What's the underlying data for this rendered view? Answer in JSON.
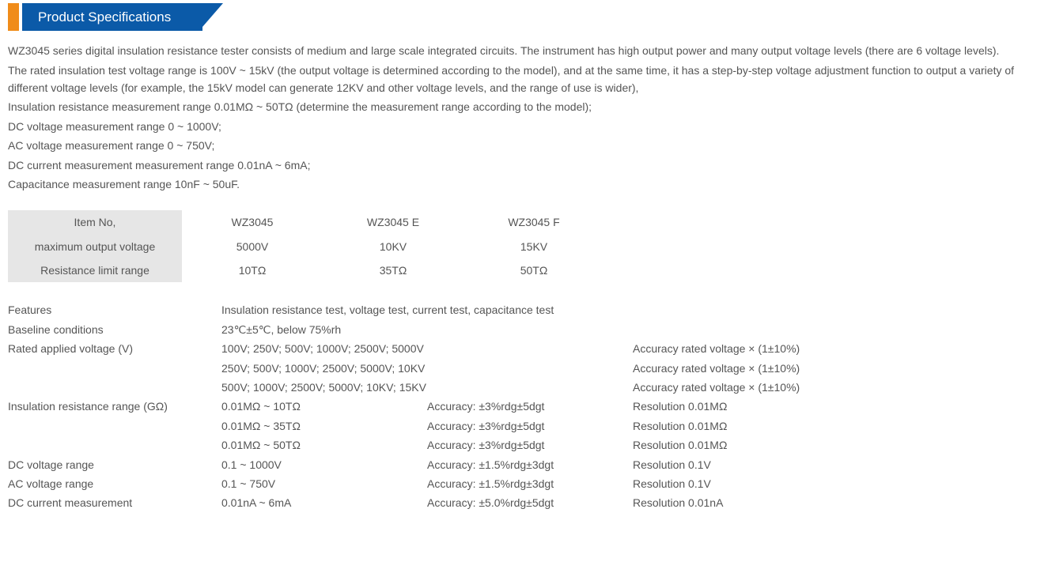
{
  "header": {
    "title": "Product Specifications"
  },
  "colors": {
    "orange": "#f08c1a",
    "blue": "#0b5aa8",
    "grey_bg": "#e6e6e6",
    "text": "#555555"
  },
  "description": {
    "p1": "WZ3045 series digital insulation resistance tester consists of medium and large scale integrated circuits. The instrument has high output power and many output voltage levels (there are 6 voltage levels).",
    "p2": "The rated insulation test voltage range is 100V ~ 15kV (the output voltage is determined according to the model), and at the same time, it has a step-by-step voltage adjustment function to output a variety of different voltage levels (for example, the 15kV model can generate 12KV and other voltage levels, and the range of use is wider),",
    "p3": "Insulation resistance measurement range 0.01MΩ ~ 50TΩ (determine the measurement range according to the model);",
    "p4": "DC voltage measurement range 0 ~ 1000V;",
    "p5": "AC voltage measurement range 0 ~ 750V;",
    "p6": "DC current measurement measurement range 0.01nA ~ 6mA;",
    "p7": "Capacitance measurement range 10nF ~ 50uF."
  },
  "models": {
    "labels": {
      "item": "Item No,",
      "max_voltage": "maximum output voltage",
      "res_limit": "Resistance limit range"
    },
    "cols": [
      {
        "name": "WZ3045",
        "max_voltage": "5000V",
        "res_limit": "10TΩ"
      },
      {
        "name": "WZ3045 E",
        "max_voltage": "10KV",
        "res_limit": "35TΩ"
      },
      {
        "name": "WZ3045 F",
        "max_voltage": "15KV",
        "res_limit": "50TΩ"
      }
    ]
  },
  "specs": {
    "features": {
      "label": "Features",
      "value": "Insulation resistance test, voltage test, current test, capacitance test"
    },
    "baseline": {
      "label": "Baseline conditions",
      "value": "23℃±5℃, below 75%rh"
    },
    "rated_voltage": {
      "label": "Rated applied voltage (V)",
      "rows": [
        {
          "v": "100V;  250V;  500V;  1000V;  2500V;  5000V",
          "a": "Accuracy rated voltage × (1±10%)"
        },
        {
          "v": "250V;  500V;  1000V;  2500V;  5000V;  10KV",
          "a": "Accuracy rated voltage × (1±10%)"
        },
        {
          "v": "500V;  1000V;  2500V;  5000V;  10KV;  15KV",
          "a": "Accuracy rated voltage × (1±10%)"
        }
      ]
    },
    "ins_res": {
      "label": "Insulation resistance range (GΩ)",
      "rows": [
        {
          "r": "0.01MΩ ~ 10TΩ",
          "a": "Accuracy: ±3%rdg±5dgt",
          "res": "Resolution 0.01MΩ"
        },
        {
          "r": "0.01MΩ ~ 35TΩ",
          "a": "Accuracy: ±3%rdg±5dgt",
          "res": "Resolution 0.01MΩ"
        },
        {
          "r": "0.01MΩ ~ 50TΩ",
          "a": "Accuracy: ±3%rdg±5dgt",
          "res": "Resolution 0.01MΩ"
        }
      ]
    },
    "dcv": {
      "label": "DC voltage range",
      "r": "0.1 ~ 1000V",
      "a": "Accuracy: ±1.5%rdg±3dgt",
      "res": "Resolution 0.1V"
    },
    "acv": {
      "label": "AC voltage range",
      "r": "0.1 ~ 750V",
      "a": "Accuracy: ±1.5%rdg±3dgt",
      "res": "Resolution 0.1V"
    },
    "dcc": {
      "label": "DC current measurement",
      "r": "0.01nA ~ 6mA",
      "a": "Accuracy: ±5.0%rdg±5dgt",
      "res": "Resolution 0.01nA"
    }
  }
}
